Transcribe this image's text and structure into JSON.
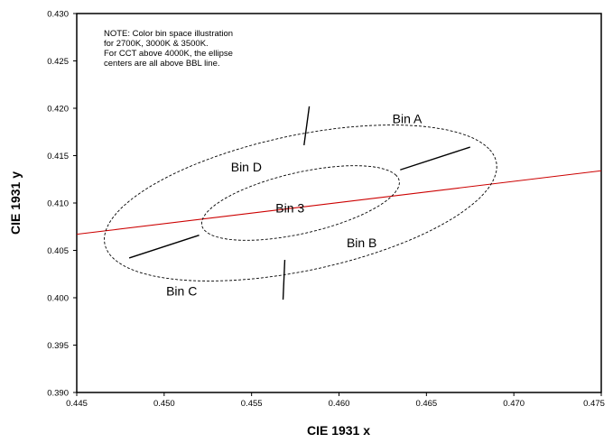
{
  "chart_data": {
    "type": "scatter",
    "title": "",
    "xlabel": "CIE 1931 x",
    "ylabel": "CIE 1931 y",
    "xlim": [
      0.445,
      0.475
    ],
    "ylim": [
      0.39,
      0.43
    ],
    "x_ticks": [
      "0.445",
      "0.450",
      "0.455",
      "0.460",
      "0.465",
      "0.470",
      "0.475"
    ],
    "y_ticks": [
      "0.390",
      "0.395",
      "0.400",
      "0.405",
      "0.410",
      "0.415",
      "0.420",
      "0.425",
      "0.430"
    ],
    "x_tick_values": [
      0.445,
      0.45,
      0.455,
      0.46,
      0.465,
      0.47,
      0.475
    ],
    "y_tick_values": [
      0.39,
      0.395,
      0.4,
      0.405,
      0.41,
      0.415,
      0.42,
      0.425,
      0.43
    ],
    "grid": false,
    "note": [
      "NOTE: Color bin space illustration",
      "for  2700K, 3000K & 3500K.",
      "For CCT above 4000K, the ellipse",
      "centers are all above BBL line."
    ],
    "series": [
      {
        "kind": "line",
        "color": "#cc0000",
        "points": [
          [
            0.445,
            0.4067
          ],
          [
            0.475,
            0.4134
          ]
        ]
      },
      {
        "kind": "ellipse",
        "style": "dashed",
        "center": [
          0.4578,
          0.41
        ],
        "semi_major_axis": 0.0122,
        "semi_minor_axis": 0.0067,
        "angle_deg": 28.0
      },
      {
        "kind": "ellipse",
        "style": "dashed",
        "center": [
          0.4578,
          0.41
        ],
        "semi_major_axis": 0.0062,
        "semi_minor_axis": 0.003,
        "angle_deg": 28.0
      }
    ],
    "dividers": [
      [
        [
          0.448,
          0.4042
        ],
        [
          0.452,
          0.4066
        ]
      ],
      [
        [
          0.4635,
          0.4135
        ],
        [
          0.4675,
          0.4159
        ]
      ],
      [
        [
          0.4583,
          0.4202
        ],
        [
          0.458,
          0.4161
        ]
      ],
      [
        [
          0.4569,
          0.404
        ],
        [
          0.4568,
          0.3998
        ]
      ]
    ],
    "annotations": [
      {
        "text": "Bin A",
        "x": 0.4639,
        "y": 0.4189
      },
      {
        "text": "Bin B",
        "x": 0.4613,
        "y": 0.4058
      },
      {
        "text": "Bin C",
        "x": 0.451,
        "y": 0.4007
      },
      {
        "text": "Bin D",
        "x": 0.4547,
        "y": 0.4138
      },
      {
        "text": "Bin 3",
        "x": 0.4572,
        "y": 0.4095
      }
    ]
  }
}
